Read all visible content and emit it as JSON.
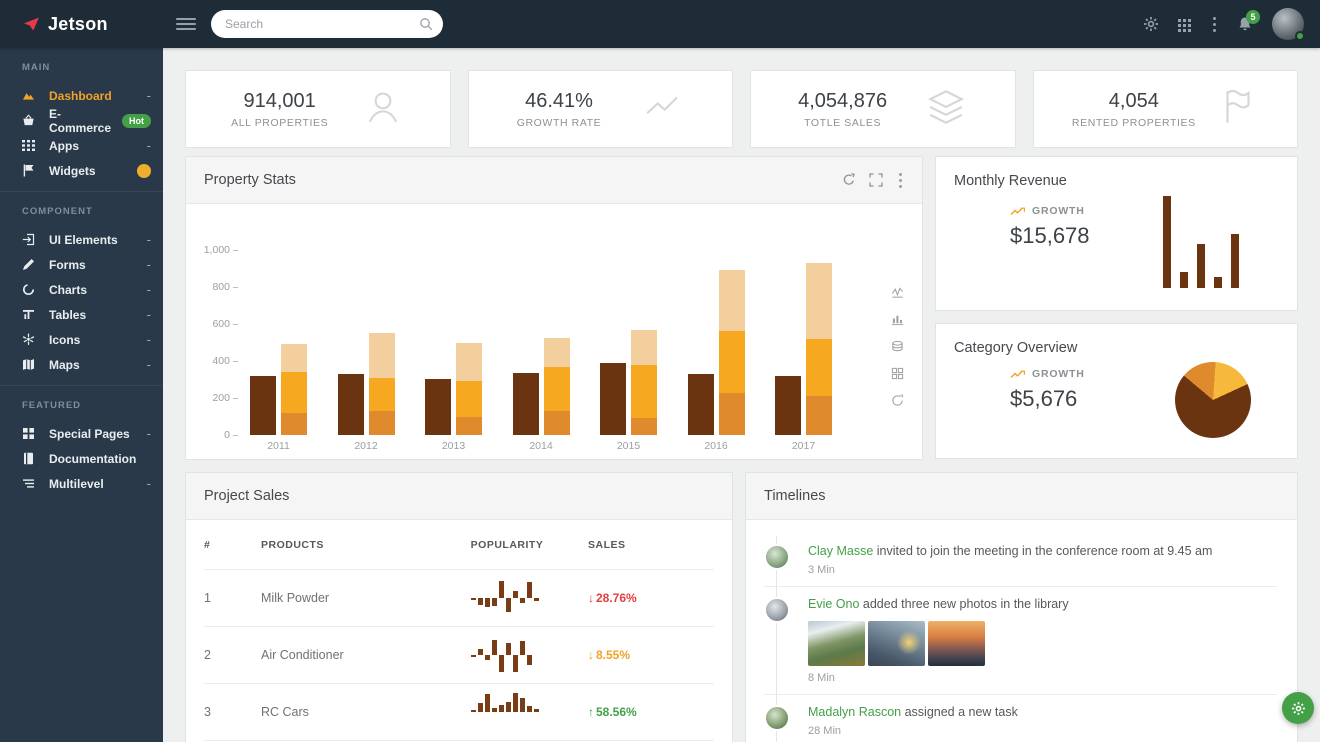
{
  "brand": {
    "name": "Jetson"
  },
  "topbar": {
    "search_placeholder": "Search",
    "notification_count": "5"
  },
  "sidebar": {
    "sections": [
      {
        "label": "MAIN",
        "items": [
          {
            "label": "Dashboard",
            "icon": "dashboard-icon",
            "active": true,
            "caret": "-"
          },
          {
            "label": "E-Commerce",
            "icon": "ecommerce-icon",
            "badge": "Hot"
          },
          {
            "label": "Apps",
            "icon": "apps-icon",
            "caret": "-"
          },
          {
            "label": "Widgets",
            "icon": "widgets-icon",
            "dot": true
          }
        ]
      },
      {
        "label": "COMPONENT",
        "items": [
          {
            "label": "UI Elements",
            "icon": "ui-elements-icon",
            "caret": "-"
          },
          {
            "label": "Forms",
            "icon": "forms-icon",
            "caret": "-"
          },
          {
            "label": "Charts",
            "icon": "charts-icon",
            "caret": "-"
          },
          {
            "label": "Tables",
            "icon": "tables-icon",
            "caret": "-"
          },
          {
            "label": "Icons",
            "icon": "icons-icon",
            "caret": "-"
          },
          {
            "label": "Maps",
            "icon": "maps-icon",
            "caret": "-"
          }
        ]
      },
      {
        "label": "FEATURED",
        "items": [
          {
            "label": "Special Pages",
            "icon": "special-pages-icon",
            "caret": "-"
          },
          {
            "label": "Documentation",
            "icon": "documentation-icon"
          },
          {
            "label": "Multilevel",
            "icon": "multilevel-icon",
            "caret": "-"
          }
        ]
      }
    ]
  },
  "stat_cards": [
    {
      "value": "914,001",
      "label": "ALL PROPERTIES",
      "icon": "user-icon"
    },
    {
      "value": "46.41%",
      "label": "GROWTH RATE",
      "icon": "trend-line-icon"
    },
    {
      "value": "4,054,876",
      "label": "TOTLE SALES",
      "icon": "layers-icon"
    },
    {
      "value": "4,054",
      "label": "RENTED PROPERTIES",
      "icon": "flag-icon"
    }
  ],
  "property_stats": {
    "title": "Property Stats",
    "chart_data": {
      "type": "bar",
      "categories": [
        "2011",
        "2012",
        "2013",
        "2014",
        "2015",
        "2016",
        "2017"
      ],
      "series": [
        {
          "name": "solid",
          "color": "#6b3411",
          "values": [
            320,
            330,
            305,
            335,
            390,
            330,
            320
          ]
        },
        {
          "name": "stack-bottom",
          "color": "#e08a2e",
          "stack": "total",
          "values": [
            120,
            130,
            100,
            130,
            90,
            225,
            210
          ]
        },
        {
          "name": "stack-middle",
          "color": "#f6a821",
          "stack": "total",
          "values": [
            220,
            180,
            190,
            235,
            290,
            335,
            310
          ]
        },
        {
          "name": "stack-top",
          "color": "#f3cf9d",
          "stack": "total",
          "values": [
            150,
            240,
            205,
            160,
            190,
            330,
            410
          ]
        }
      ],
      "ylim": [
        0,
        1000
      ],
      "yticks": [
        {
          "v": 0,
          "label": "0"
        },
        {
          "v": 200,
          "label": "200"
        },
        {
          "v": 400,
          "label": "400"
        },
        {
          "v": 600,
          "label": "600"
        },
        {
          "v": 800,
          "label": "800"
        },
        {
          "v": 1000,
          "label": "1,000"
        }
      ],
      "grid": false,
      "legend": false
    }
  },
  "monthly_revenue": {
    "title": "Monthly Revenue",
    "growth_label": "GROWTH",
    "value": "$15,678",
    "chart_data": {
      "type": "bar",
      "values": [
        92,
        16,
        44,
        11,
        54
      ],
      "color": "#6b3411"
    }
  },
  "category_overview": {
    "title": "Category Overview",
    "growth_label": "GROWTH",
    "value": "$5,676",
    "chart_data": {
      "type": "pie",
      "start_deg": -50,
      "slices": [
        {
          "color": "#e08a2e",
          "pct": 15
        },
        {
          "color": "#f6b93b",
          "pct": 17
        },
        {
          "color": "#6b3411",
          "pct": 68
        }
      ]
    }
  },
  "project_sales": {
    "title": "Project Sales",
    "columns": [
      "#",
      "PRODUCTS",
      "POPULARITY",
      "SALES"
    ],
    "spark_color": "#7a3c14",
    "rows": [
      {
        "num": "1",
        "product": "Milk Powder",
        "popularity": [
          -0.5,
          -1.8,
          -2.2,
          -2,
          4.2,
          -3.5,
          1.8,
          -1.2,
          4,
          -0.8
        ],
        "sales": "28.76%",
        "direction": "down",
        "color": "#e53e3e"
      },
      {
        "num": "2",
        "product": "Air Conditioner",
        "popularity": [
          -0.4,
          1.4,
          -1.2,
          3.8,
          -4.2,
          3,
          -4.2,
          3.4,
          -2.4
        ],
        "sales": "8.55%",
        "direction": "down",
        "color": "#f0a325"
      },
      {
        "num": "3",
        "product": "RC Cars",
        "popularity": [
          0.4,
          2.2,
          4.6,
          1,
          1.8,
          2.6,
          4.8,
          3.4,
          1.6,
          0.7
        ],
        "sales": "58.56%",
        "direction": "up",
        "color": "#43a047"
      }
    ]
  },
  "timelines": {
    "title": "Timelines",
    "items": [
      {
        "name": "Clay Masse",
        "text": "invited to join the meeting in the conference room at 9.45 am",
        "time": "3 Min",
        "avatar": "av1",
        "photos": []
      },
      {
        "name": "Evie Ono",
        "text": "added three new photos in the library",
        "time": "8 Min",
        "avatar": "av2",
        "photos": [
          "photo-mountain",
          "photo-cliff",
          "photo-sunset"
        ]
      },
      {
        "name": "Madalyn Rascon",
        "text": "assigned a new task",
        "time": "28 Min",
        "avatar": "av3",
        "photos": []
      }
    ]
  },
  "colors": {
    "accent_orange": "#f0a325",
    "accent_green": "#43a047",
    "brand_red": "#e8394a",
    "bar_dark": "#6b3411",
    "bar_orange": "#e08a2e",
    "bar_amber": "#f6a821",
    "bar_peach": "#f3cf9d"
  }
}
